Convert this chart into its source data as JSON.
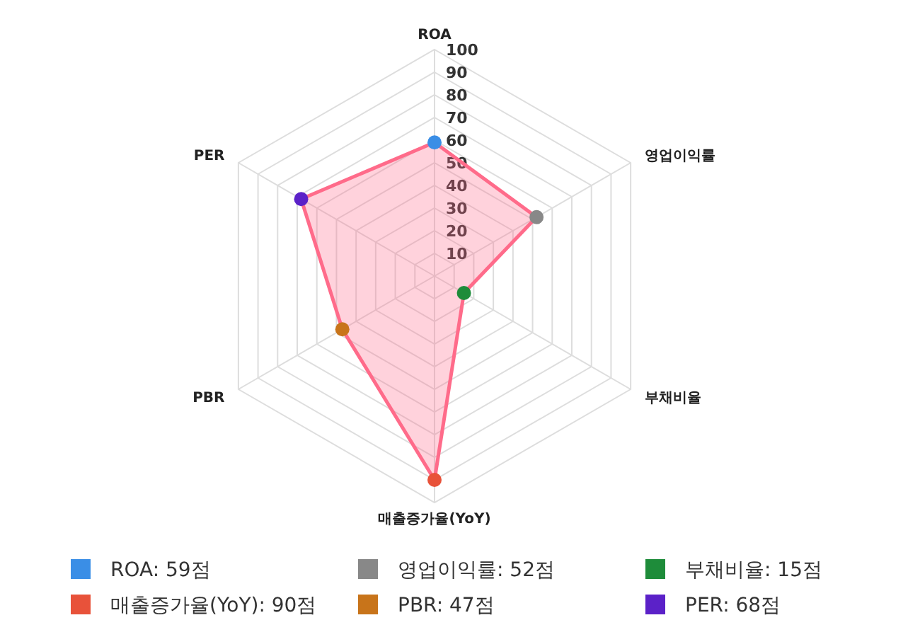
{
  "chart_data": {
    "type": "radar",
    "categories": [
      "ROA",
      "영업이익률",
      "부채비율",
      "매출증가율(YoY)",
      "PBR",
      "PER"
    ],
    "series": [
      {
        "color": "#ff6b8a",
        "values": [
          59,
          52,
          15,
          90,
          47,
          68
        ],
        "colors": [
          "#3a8ee6",
          "#888888",
          "#1e8c3a",
          "#e8523a",
          "#c8741a",
          "#5b21c8"
        ]
      }
    ],
    "annotations": [
      "ROA: 59점",
      "영업이익률: 52점",
      "부채비율: 15점",
      "매출증가율(YoY): 90점",
      "PBR: 47점",
      "PER: 68점"
    ],
    "ylim": [
      0,
      100
    ],
    "yticks": [
      10,
      20,
      30,
      40,
      50,
      60,
      70,
      80,
      90,
      100
    ],
    "grid": true,
    "marker": "circle",
    "line_style": "solid"
  }
}
